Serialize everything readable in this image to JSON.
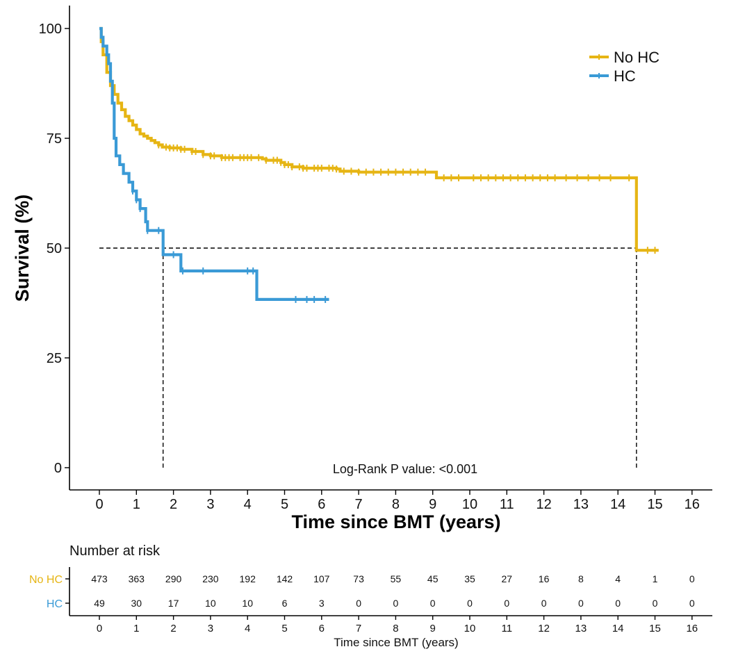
{
  "chart_data": {
    "type": "line",
    "subtype": "kaplan-meier",
    "xlabel": "Time since BMT (years)",
    "ylabel": "Survival (%)",
    "xlim": [
      -0.8,
      16.8
    ],
    "ylim": [
      -5,
      105
    ],
    "x_ticks": [
      0,
      1,
      2,
      3,
      4,
      5,
      6,
      7,
      8,
      9,
      10,
      11,
      12,
      13,
      14,
      15,
      16
    ],
    "y_ticks": [
      0,
      25,
      50,
      75,
      100
    ],
    "annotation": "Log-Rank P value: <0.001",
    "median_line": {
      "y": 50,
      "medians": [
        1.72,
        14.5
      ]
    },
    "series": [
      {
        "name": "No HC",
        "color": "#E6B514",
        "steps": [
          [
            0,
            100
          ],
          [
            0.05,
            97
          ],
          [
            0.1,
            94
          ],
          [
            0.2,
            90
          ],
          [
            0.3,
            87
          ],
          [
            0.4,
            85
          ],
          [
            0.5,
            83
          ],
          [
            0.6,
            81.5
          ],
          [
            0.7,
            80
          ],
          [
            0.8,
            79
          ],
          [
            0.9,
            78
          ],
          [
            1.0,
            77
          ],
          [
            1.1,
            76
          ],
          [
            1.2,
            75.5
          ],
          [
            1.3,
            75
          ],
          [
            1.4,
            74.5
          ],
          [
            1.5,
            74
          ],
          [
            1.6,
            73.5
          ],
          [
            1.7,
            73
          ],
          [
            1.9,
            72.8
          ],
          [
            2.2,
            72.5
          ],
          [
            2.5,
            72
          ],
          [
            2.8,
            71.3
          ],
          [
            3.0,
            71
          ],
          [
            3.3,
            70.6
          ],
          [
            4.4,
            70.3
          ],
          [
            4.5,
            70
          ],
          [
            4.9,
            69.5
          ],
          [
            5.0,
            69
          ],
          [
            5.2,
            68.5
          ],
          [
            5.5,
            68.2
          ],
          [
            6.4,
            68
          ],
          [
            6.5,
            67.5
          ],
          [
            7.0,
            67.3
          ],
          [
            9.1,
            66
          ],
          [
            14.5,
            66
          ],
          [
            14.5,
            49.5
          ],
          [
            15.1,
            49.5
          ]
        ],
        "censor_times": [
          1.6,
          1.8,
          1.9,
          2.0,
          2.1,
          2.2,
          2.3,
          2.5,
          2.6,
          2.8,
          3.0,
          3.1,
          3.3,
          3.4,
          3.5,
          3.6,
          3.8,
          3.9,
          4.0,
          4.1,
          4.3,
          4.5,
          4.7,
          4.8,
          4.9,
          5.0,
          5.1,
          5.2,
          5.4,
          5.5,
          5.6,
          5.8,
          5.9,
          6.0,
          6.2,
          6.3,
          6.4,
          6.6,
          6.8,
          7.0,
          7.2,
          7.4,
          7.6,
          7.8,
          8.0,
          8.2,
          8.4,
          8.6,
          8.8,
          9.3,
          9.5,
          9.7,
          10.1,
          10.3,
          10.5,
          10.7,
          10.9,
          11.1,
          11.3,
          11.5,
          11.7,
          11.9,
          12.1,
          12.3,
          12.6,
          12.9,
          13.2,
          13.5,
          13.8,
          14.3,
          14.8,
          15.0
        ]
      },
      {
        "name": "HC",
        "color": "#3A9AD6",
        "steps": [
          [
            0,
            100
          ],
          [
            0.05,
            98
          ],
          [
            0.1,
            96
          ],
          [
            0.2,
            94
          ],
          [
            0.25,
            92
          ],
          [
            0.3,
            88
          ],
          [
            0.35,
            83
          ],
          [
            0.4,
            75
          ],
          [
            0.45,
            71
          ],
          [
            0.55,
            69
          ],
          [
            0.65,
            67
          ],
          [
            0.8,
            65
          ],
          [
            0.9,
            63
          ],
          [
            1.0,
            61
          ],
          [
            1.1,
            59
          ],
          [
            1.25,
            56
          ],
          [
            1.3,
            54
          ],
          [
            1.72,
            48.5
          ],
          [
            2.2,
            44.8
          ],
          [
            4.25,
            38.3
          ],
          [
            6.2,
            38.3
          ]
        ],
        "censor_times": [
          0.9,
          1.0,
          1.1,
          1.3,
          1.6,
          2.0,
          2.25,
          2.8,
          4.0,
          4.15,
          5.3,
          5.6,
          5.8,
          6.1
        ]
      }
    ],
    "legend": [
      "No HC",
      "HC"
    ],
    "legend_position": "top-right"
  },
  "risk_table": {
    "title": "Number at risk",
    "xlabel": "Time since BMT (years)",
    "x_ticks": [
      0,
      1,
      2,
      3,
      4,
      5,
      6,
      7,
      8,
      9,
      10,
      11,
      12,
      13,
      14,
      15,
      16
    ],
    "rows": [
      {
        "group": "No HC",
        "color": "#E6B514",
        "values": [
          473,
          363,
          290,
          230,
          192,
          142,
          107,
          73,
          55,
          45,
          35,
          27,
          16,
          8,
          4,
          1,
          0
        ]
      },
      {
        "group": "HC",
        "color": "#3A9AD6",
        "values": [
          49,
          30,
          17,
          10,
          10,
          6,
          3,
          0,
          0,
          0,
          0,
          0,
          0,
          0,
          0,
          0,
          0
        ]
      }
    ]
  }
}
